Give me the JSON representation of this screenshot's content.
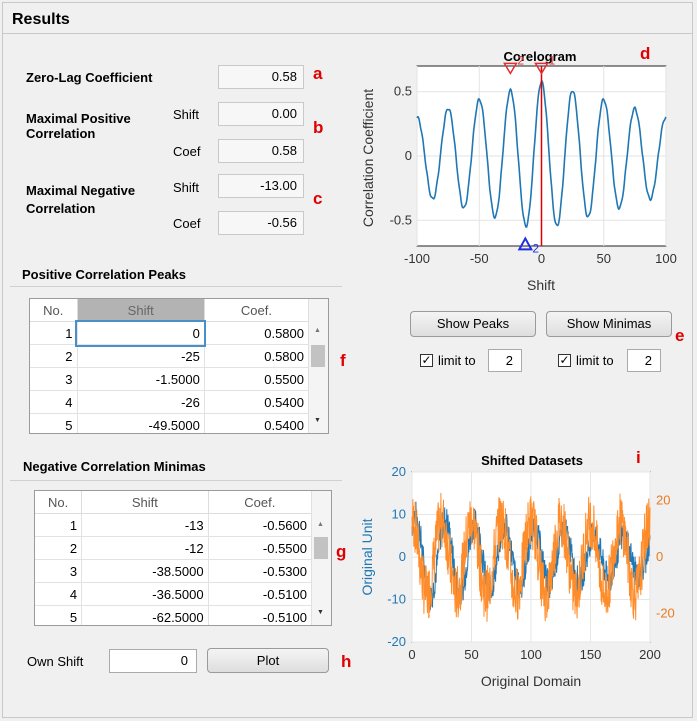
{
  "panel_title": "Results",
  "fields": {
    "zero_lag_label": "Zero-Lag Coefficient",
    "zero_lag_value": "0.58",
    "max_pos_label": "Maximal Positive Correlation",
    "max_pos_shift_label": "Shift",
    "max_pos_shift_value": "0.00",
    "max_pos_coef_label": "Coef",
    "max_pos_coef_value": "0.58",
    "max_neg_label": "Maximal Negative Correlation",
    "max_neg_shift_label": "Shift",
    "max_neg_shift_value": "-13.00",
    "max_neg_coef_label": "Coef",
    "max_neg_coef_value": "-0.56"
  },
  "markers": {
    "a": "a",
    "b": "b",
    "c": "c",
    "d": "d",
    "e": "e",
    "f": "f",
    "g": "g",
    "h": "h",
    "i": "i"
  },
  "pos_peaks": {
    "title": "Positive Correlation Peaks",
    "columns": [
      "No.",
      "Shift",
      "Coef."
    ],
    "rows": [
      [
        "1",
        "0",
        "0.5800"
      ],
      [
        "2",
        "-25",
        "0.5800"
      ],
      [
        "3",
        "-1.5000",
        "0.5500"
      ],
      [
        "4",
        "-26",
        "0.5400"
      ],
      [
        "5",
        "-49.5000",
        "0.5400"
      ]
    ]
  },
  "neg_minimas": {
    "title": "Negative Correlation Minimas",
    "columns": [
      "No.",
      "Shift",
      "Coef."
    ],
    "rows": [
      [
        "1",
        "-13",
        "-0.5600"
      ],
      [
        "2",
        "-12",
        "-0.5500"
      ],
      [
        "3",
        "-38.5000",
        "-0.5300"
      ],
      [
        "4",
        "-36.5000",
        "-0.5100"
      ],
      [
        "5",
        "-62.5000",
        "-0.5100"
      ]
    ]
  },
  "controls": {
    "show_peaks": "Show Peaks",
    "show_minimas": "Show Minimas",
    "limit_label": "limit to",
    "peaks_limit": "2",
    "minimas_limit": "2",
    "check_mark": "✓",
    "own_shift_label": "Own Shift",
    "own_shift_value": "0",
    "plot_button": "Plot"
  },
  "chart_data": [
    {
      "type": "line",
      "title": "Corelogram",
      "xlabel": "Shift",
      "ylabel": "Correlation Coefficient",
      "xlim": [
        -100,
        100
      ],
      "ylim": [
        -0.7,
        0.7
      ],
      "xticks": [
        "-100",
        "-50",
        "0",
        "50",
        "100"
      ],
      "yticks": [
        "-0.5",
        "0",
        "0.5"
      ],
      "series": [
        {
          "color": "#1f77b4",
          "period": 25,
          "amplitude_at_zero": 0.58,
          "amplitude_at_edge": 0.3
        }
      ],
      "annotations": {
        "peak_markers": [
          {
            "label": "1",
            "x": 0,
            "y": 0.58
          },
          {
            "label": "2",
            "x": -25,
            "y": 0.58
          }
        ],
        "minima_markers": [
          {
            "label": "1",
            "x": -13,
            "y": -0.56
          },
          {
            "label": "2",
            "x": -12,
            "y": -0.55
          }
        ],
        "vline_x": 0
      },
      "grid": true
    },
    {
      "type": "line",
      "title": "Shifted Datasets",
      "xlabel": "Original Domain",
      "ylabel": "Original Unit",
      "xlim": [
        0,
        200
      ],
      "ylim": [
        -20,
        20
      ],
      "y2lim": [
        -30,
        30
      ],
      "xticks": [
        "0",
        "50",
        "100",
        "150",
        "200"
      ],
      "yticks": [
        "-20",
        "-10",
        "0",
        "10",
        "20"
      ],
      "y2ticks": [
        "-20",
        "0",
        "20"
      ],
      "series": [
        {
          "axis": "left",
          "color": "#1f77b4",
          "amplitude": 10,
          "noise": 4
        },
        {
          "axis": "right",
          "color": "#ff8c2a",
          "amplitude": 15,
          "noise": 9
        }
      ],
      "grid": true
    }
  ]
}
